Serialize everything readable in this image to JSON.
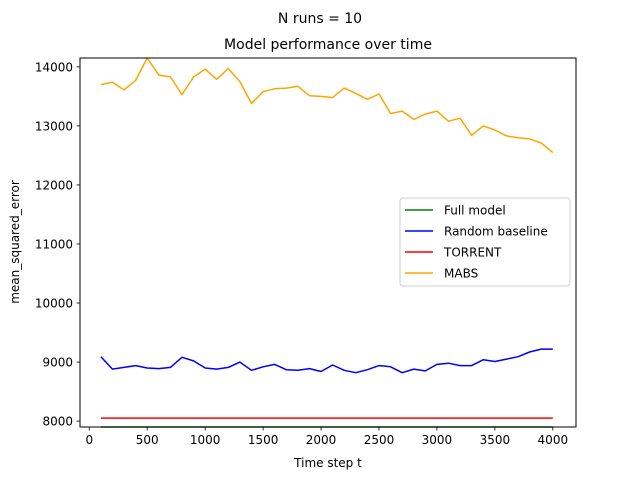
{
  "figure": {
    "suptitle": "N runs = 10"
  },
  "chart_data": {
    "type": "line",
    "title": "Model performance over time",
    "xlabel": "Time step t",
    "ylabel": "mean_squared_error",
    "xlim": [
      -80,
      4200
    ],
    "ylim": [
      7900,
      14150
    ],
    "xticks": [
      0,
      500,
      1000,
      1500,
      2000,
      2500,
      3000,
      3500,
      4000
    ],
    "xtick_labels": [
      "0",
      "500",
      "1000",
      "1500",
      "2000",
      "2500",
      "3000",
      "3500",
      "4000"
    ],
    "yticks": [
      8000,
      9000,
      10000,
      11000,
      12000,
      13000,
      14000
    ],
    "ytick_labels": [
      "8000",
      "9000",
      "10000",
      "11000",
      "12000",
      "13000",
      "14000"
    ],
    "grid": false,
    "legend_position": "center-right",
    "x": [
      100,
      200,
      300,
      400,
      500,
      600,
      700,
      800,
      900,
      1000,
      1100,
      1200,
      1300,
      1400,
      1500,
      1600,
      1700,
      1800,
      1900,
      2000,
      2100,
      2200,
      2300,
      2400,
      2500,
      2600,
      2700,
      2800,
      2900,
      3000,
      3100,
      3200,
      3300,
      3400,
      3500,
      3600,
      3700,
      3800,
      3900,
      4000
    ],
    "series": [
      {
        "name": "Full model",
        "color": "#008000",
        "values": [
          7900,
          7900,
          7900,
          7900,
          7900,
          7900,
          7900,
          7900,
          7900,
          7900,
          7900,
          7900,
          7900,
          7900,
          7900,
          7900,
          7900,
          7900,
          7900,
          7900,
          7900,
          7900,
          7900,
          7900,
          7900,
          7900,
          7900,
          7900,
          7900,
          7900,
          7900,
          7900,
          7900,
          7900,
          7900,
          7900,
          7900,
          7900,
          7900,
          7900
        ]
      },
      {
        "name": "Random baseline",
        "color": "#0000ff",
        "values": [
          9090,
          8880,
          8910,
          8940,
          8900,
          8890,
          8910,
          9080,
          9020,
          8900,
          8880,
          8910,
          9000,
          8860,
          8920,
          8960,
          8870,
          8860,
          8890,
          8840,
          8950,
          8860,
          8820,
          8870,
          8940,
          8920,
          8820,
          8880,
          8850,
          8960,
          8980,
          8940,
          8940,
          9040,
          9010,
          9050,
          9090,
          9170,
          9220,
          9220
        ]
      },
      {
        "name": "TORRENT",
        "color": "#ff0000",
        "values": [
          8050,
          8050,
          8050,
          8050,
          8050,
          8050,
          8050,
          8050,
          8050,
          8050,
          8050,
          8050,
          8050,
          8050,
          8050,
          8050,
          8050,
          8050,
          8050,
          8050,
          8050,
          8050,
          8050,
          8050,
          8050,
          8050,
          8050,
          8050,
          8050,
          8050,
          8050,
          8050,
          8050,
          8050,
          8050,
          8050,
          8050,
          8050,
          8050,
          8050
        ]
      },
      {
        "name": "MABS",
        "color": "#ffa500",
        "values": [
          13700,
          13740,
          13610,
          13770,
          14150,
          13860,
          13830,
          13530,
          13830,
          13960,
          13790,
          13970,
          13750,
          13380,
          13580,
          13630,
          13640,
          13670,
          13510,
          13500,
          13480,
          13640,
          13550,
          13450,
          13540,
          13210,
          13250,
          13110,
          13200,
          13250,
          13080,
          13130,
          12840,
          13000,
          12930,
          12830,
          12800,
          12780,
          12710,
          12550
        ]
      }
    ]
  }
}
